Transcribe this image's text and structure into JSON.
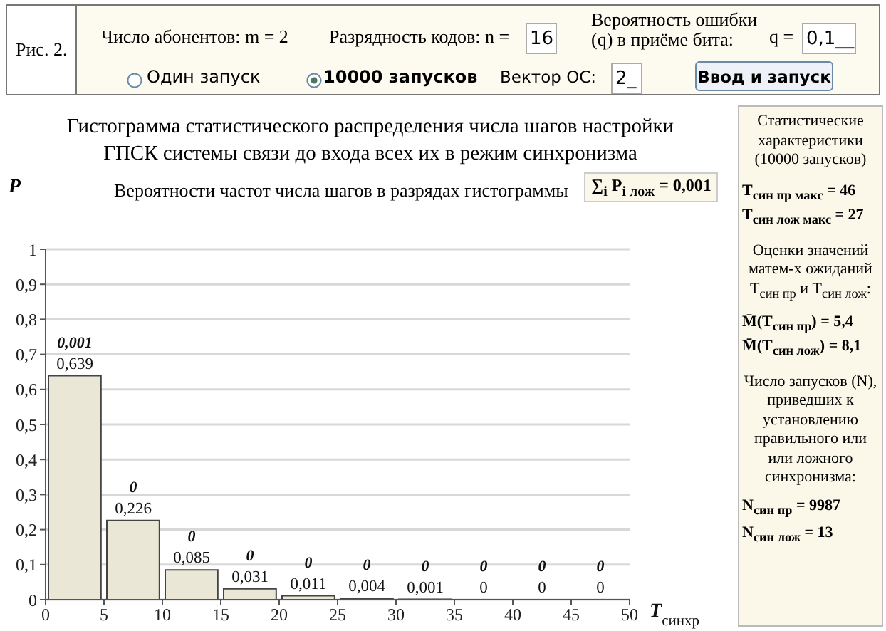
{
  "chart_data": {
    "type": "histogram",
    "title": "Гистограмма статистического распределения числа шагов настройки ГПСК системы связи до входа всех их в режим синхронизма",
    "subtitle": "Вероятности частот числа шагов в разрядах гистограммы",
    "xlabel": "T$_{синхр}$",
    "ylabel": "P",
    "bins": [
      0,
      5,
      10,
      15,
      20,
      25,
      30,
      35,
      40,
      45,
      50
    ],
    "values": [
      0.639,
      0.226,
      0.085,
      0.031,
      0.011,
      0.004,
      0.001,
      0,
      0,
      0
    ],
    "value_labels": [
      "0,639",
      "0,226",
      "0,085",
      "0,031",
      "0,011",
      "0,004",
      "0,001",
      "0",
      "0",
      "0"
    ],
    "color": "#ebe7d6",
    "xlim": [
      0,
      50
    ],
    "xticks": [
      0,
      5,
      10,
      15,
      20,
      25,
      30,
      35,
      40,
      45,
      50
    ],
    "ylim": [
      0,
      1
    ],
    "yticks": [
      0,
      {
        "value": 0.1,
        "label": "0,1"
      },
      {
        "value": 0.2,
        "label": "0,2"
      },
      {
        "value": 0.3,
        "label": "0,3"
      },
      {
        "value": 0.4,
        "label": "0,4"
      },
      {
        "value": 0.5,
        "label": "0,5"
      },
      {
        "value": 0.6,
        "label": "0,6"
      },
      {
        "value": 0.7,
        "label": "0,7"
      },
      {
        "value": 0.8,
        "label": "0,8"
      },
      {
        "value": 0.9,
        "label": "0,9"
      },
      1
    ],
    "grid": "y",
    "annotations": [
      "Рис. 2.",
      "Число абонентов: m = 2",
      "Разрядность кодов: n =",
      "16",
      "Вероятность ошибки (q) в приёме бита:",
      "q =",
      "0,1__",
      "Один запуск",
      "10000 запусков",
      "Вектор ОС:",
      "2_",
      "Ввод и запуск",
      "∑$_{i}$ P$_{i лож}$ = 0,001",
      "Статистические характеристики (10000 запусков)",
      "T$_{син пр макс}$ = 46",
      "T$_{син лож макс}$ = 27",
      "Оценки значений матем-х ожиданий T$_{син пр}$ и T$_{син лож}$:",
      "M̄(T$_{син пр}$) = 5,4",
      "M̄(T$_{син лож}$) = 8,1",
      "Число запусков (N), приведших к установлению правильного или или ложного синхронизма:",
      "N$_{син пр}$ = 9987",
      "N$_{син лож}$ = 13",
      {
        "text": "0,001",
        "x": 2.5,
        "y": 0.639
      },
      {
        "text": "0",
        "x": 7.5,
        "y": 0.226
      },
      {
        "text": "0",
        "x": 12.5,
        "y": 0.085
      },
      {
        "text": "0",
        "x": 17.5,
        "y": 0.031
      },
      {
        "text": "0",
        "x": 22.5,
        "y": 0.011
      },
      {
        "text": "0",
        "x": 27.5,
        "y": 0.004
      },
      {
        "text": "0",
        "x": 32.5,
        "y": 0.001
      },
      {
        "text": "0",
        "x": 37.5,
        "y": 0
      },
      {
        "text": "0",
        "x": 42.5,
        "y": 0
      },
      {
        "text": "0",
        "x": 47.5,
        "y": 0
      }
    ]
  }
}
